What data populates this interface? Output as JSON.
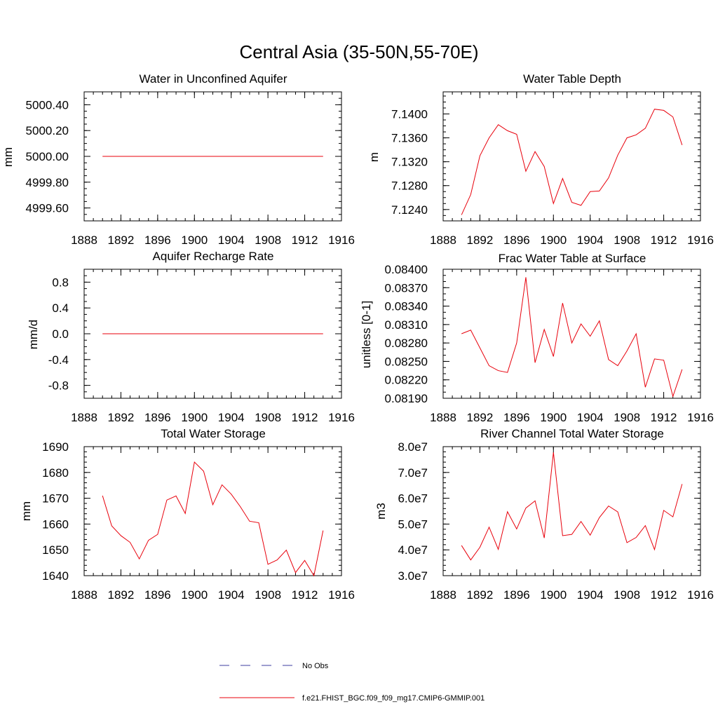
{
  "figure": {
    "title": "Central Asia (35-50N,55-70E)"
  },
  "colors": {
    "model_line": "#e8000b",
    "obs_line": "#3c3ca0",
    "axis": "#000000"
  },
  "legend": {
    "placement": "bottom-center",
    "entries": [
      {
        "label": "No Obs",
        "style": "dashed",
        "color": "#3c3ca0"
      },
      {
        "label": "f.e21.FHIST_BGC.f09_f09_mg17.CMIP6-GMMIP.001",
        "style": "solid",
        "color": "#e8000b"
      }
    ]
  },
  "chart_data": [
    {
      "type": "line",
      "title": "Water in Unconfined Aquifer",
      "ylabel": "mm",
      "xlim": [
        1888,
        1916
      ],
      "ylim": [
        4999.5,
        5000.5
      ],
      "xticks": [
        1888,
        1892,
        1896,
        1900,
        1904,
        1908,
        1912,
        1916
      ],
      "yticks": [
        4999.6,
        4999.8,
        5000.0,
        5000.2,
        5000.4
      ],
      "ytick_labels": [
        "4999.60",
        "4999.80",
        "5000.00",
        "5000.20",
        "5000.40"
      ],
      "yminor": 0.05,
      "x": [
        1890,
        1891,
        1892,
        1893,
        1894,
        1895,
        1896,
        1897,
        1898,
        1899,
        1900,
        1901,
        1902,
        1903,
        1904,
        1905,
        1906,
        1907,
        1908,
        1909,
        1910,
        1911,
        1912,
        1913,
        1914
      ],
      "series": [
        {
          "values": [
            5000,
            5000,
            5000,
            5000,
            5000,
            5000,
            5000,
            5000,
            5000,
            5000,
            5000,
            5000,
            5000,
            5000,
            5000,
            5000,
            5000,
            5000,
            5000,
            5000,
            5000,
            5000,
            5000,
            5000,
            5000
          ]
        }
      ]
    },
    {
      "type": "line",
      "title": "Water Table Depth",
      "ylabel": "m",
      "xlim": [
        1888,
        1916
      ],
      "ylim": [
        7.1221,
        7.1437
      ],
      "xticks": [
        1888,
        1892,
        1896,
        1900,
        1904,
        1908,
        1912,
        1916
      ],
      "yticks": [
        7.124,
        7.128,
        7.132,
        7.136,
        7.14
      ],
      "ytick_labels": [
        "7.1240",
        "7.1280",
        "7.1320",
        "7.1360",
        "7.1400"
      ],
      "yminor": 0.001,
      "x": [
        1890,
        1891,
        1892,
        1893,
        1894,
        1895,
        1896,
        1897,
        1898,
        1899,
        1900,
        1901,
        1902,
        1903,
        1904,
        1905,
        1906,
        1907,
        1908,
        1909,
        1910,
        1911,
        1912,
        1913,
        1914
      ],
      "series": [
        {
          "values": [
            7.1231,
            7.1265,
            7.133,
            7.136,
            7.1382,
            7.1372,
            7.1366,
            7.1304,
            7.1337,
            7.1312,
            7.125,
            7.1292,
            7.1252,
            7.1247,
            7.127,
            7.1271,
            7.1293,
            7.1331,
            7.136,
            7.1365,
            7.1376,
            7.1408,
            7.1406,
            7.1395,
            7.1348
          ]
        }
      ]
    },
    {
      "type": "line",
      "title": "Aquifer Recharge Rate",
      "ylabel": "mm/d",
      "xlim": [
        1888,
        1916
      ],
      "ylim": [
        -1.0,
        1.0
      ],
      "xticks": [
        1888,
        1892,
        1896,
        1900,
        1904,
        1908,
        1912,
        1916
      ],
      "yticks": [
        -0.8,
        -0.4,
        0.0,
        0.4,
        0.8
      ],
      "ytick_labels": [
        "-0.8",
        "-0.4",
        "0.0",
        "0.4",
        "0.8"
      ],
      "yminor": 0.1,
      "x": [
        1890,
        1891,
        1892,
        1893,
        1894,
        1895,
        1896,
        1897,
        1898,
        1899,
        1900,
        1901,
        1902,
        1903,
        1904,
        1905,
        1906,
        1907,
        1908,
        1909,
        1910,
        1911,
        1912,
        1913,
        1914
      ],
      "series": [
        {
          "values": [
            0,
            0,
            0,
            0,
            0,
            0,
            0,
            0,
            0,
            0,
            0,
            0,
            0,
            0,
            0,
            0,
            0,
            0,
            0,
            0,
            0,
            0,
            0,
            0,
            0
          ]
        }
      ]
    },
    {
      "type": "line",
      "title": "Frac Water Table at Surface",
      "ylabel": "unitless [0-1]",
      "xlim": [
        1888,
        1916
      ],
      "ylim": [
        0.0819,
        0.084
      ],
      "xticks": [
        1888,
        1892,
        1896,
        1900,
        1904,
        1908,
        1912,
        1916
      ],
      "yticks": [
        0.0819,
        0.0822,
        0.0825,
        0.0828,
        0.0831,
        0.0834,
        0.0837,
        0.084
      ],
      "ytick_labels": [
        "0.08190",
        "0.08220",
        "0.08250",
        "0.08280",
        "0.08310",
        "0.08340",
        "0.08370",
        "0.08400"
      ],
      "yminor": 0.0001,
      "x": [
        1890,
        1891,
        1892,
        1893,
        1894,
        1895,
        1896,
        1897,
        1898,
        1899,
        1900,
        1901,
        1902,
        1903,
        1904,
        1905,
        1906,
        1907,
        1908,
        1909,
        1910,
        1911,
        1912,
        1913,
        1914
      ],
      "series": [
        {
          "values": [
            0.08295,
            0.08301,
            0.08272,
            0.08243,
            0.08235,
            0.08232,
            0.0828,
            0.08387,
            0.08248,
            0.08302,
            0.08258,
            0.08345,
            0.0828,
            0.08311,
            0.08291,
            0.08316,
            0.08253,
            0.08243,
            0.08267,
            0.08295,
            0.08208,
            0.08254,
            0.08252,
            0.08193,
            0.08237
          ]
        }
      ]
    },
    {
      "type": "line",
      "title": "Total Water Storage",
      "ylabel": "mm",
      "xlim": [
        1888,
        1916
      ],
      "ylim": [
        1640,
        1690
      ],
      "xticks": [
        1888,
        1892,
        1896,
        1900,
        1904,
        1908,
        1912,
        1916
      ],
      "yticks": [
        1640,
        1650,
        1660,
        1670,
        1680,
        1690
      ],
      "ytick_labels": [
        "1640",
        "1650",
        "1660",
        "1670",
        "1680",
        "1690"
      ],
      "yminor": 2,
      "x": [
        1890,
        1891,
        1892,
        1893,
        1894,
        1895,
        1896,
        1897,
        1898,
        1899,
        1900,
        1901,
        1902,
        1903,
        1904,
        1905,
        1906,
        1907,
        1908,
        1909,
        1910,
        1911,
        1912,
        1913,
        1914
      ],
      "series": [
        {
          "values": [
            1671.0,
            1659.3,
            1655.5,
            1652.9,
            1646.5,
            1653.7,
            1656.0,
            1669.3,
            1670.9,
            1664.1,
            1684.0,
            1680.5,
            1667.5,
            1675.2,
            1671.6,
            1666.7,
            1661.1,
            1660.5,
            1644.4,
            1646.1,
            1649.9,
            1641.2,
            1645.9,
            1640.0,
            1657.5
          ]
        }
      ]
    },
    {
      "type": "line",
      "title": "River Channel Total Water Storage",
      "ylabel": "m3",
      "xlim": [
        1888,
        1916
      ],
      "ylim": [
        30000000,
        80000000
      ],
      "xticks": [
        1888,
        1892,
        1896,
        1900,
        1904,
        1908,
        1912,
        1916
      ],
      "yticks": [
        30000000,
        40000000,
        50000000,
        60000000,
        70000000,
        80000000
      ],
      "ytick_labels": [
        "3.0e7",
        "4.0e7",
        "5.0e7",
        "6.0e7",
        "7.0e7",
        "8.0e7"
      ],
      "yminor": 2000000,
      "x": [
        1890,
        1891,
        1892,
        1893,
        1894,
        1895,
        1896,
        1897,
        1898,
        1899,
        1900,
        1901,
        1902,
        1903,
        1904,
        1905,
        1906,
        1907,
        1908,
        1909,
        1910,
        1911,
        1912,
        1913,
        1914
      ],
      "series": [
        {
          "values": [
            41700000,
            36100000,
            41000000,
            48800000,
            40200000,
            54800000,
            48100000,
            56200000,
            59000000,
            44600000,
            77800000,
            45500000,
            46000000,
            51000000,
            45700000,
            52500000,
            57000000,
            54700000,
            42800000,
            44800000,
            49400000,
            40100000,
            55300000,
            52800000,
            65500000
          ]
        }
      ]
    }
  ]
}
